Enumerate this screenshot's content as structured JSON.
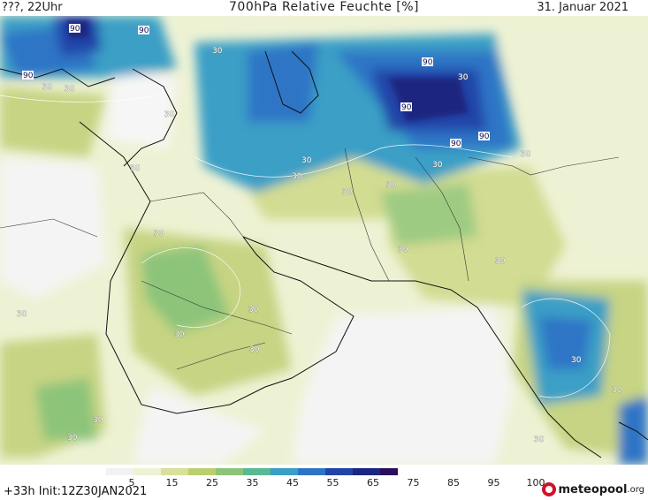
{
  "header": {
    "left": "???, 22Uhr",
    "title": "700hPa Relative Feuchte [%]",
    "date": "31. Januar 2021"
  },
  "map": {
    "contour_labels": [
      "90",
      "90",
      "90",
      "90",
      "90",
      "90",
      "90",
      "30",
      "30",
      "30",
      "30",
      "30",
      "30",
      "30",
      "30",
      "30",
      "30",
      "30",
      "30",
      "30",
      "30",
      "30",
      "30",
      "30",
      "30",
      "30",
      "30",
      "30",
      "30",
      "30",
      "30"
    ]
  },
  "colorbar": {
    "ticks": [
      "5",
      "15",
      "25",
      "35",
      "45",
      "55",
      "65",
      "75",
      "85",
      "95",
      "100"
    ],
    "colors": [
      "#f2f2f2",
      "#eef2d4",
      "#d8e09a",
      "#bccf6e",
      "#8cc47a",
      "#5ab892",
      "#3a9fc6",
      "#2e74c6",
      "#2244a8",
      "#1a2680",
      "#2a0f5a"
    ]
  },
  "footer": {
    "init": "+33h Init:12Z30JAN2021",
    "logo_main": "meteopool",
    "logo_tld": ".org"
  }
}
